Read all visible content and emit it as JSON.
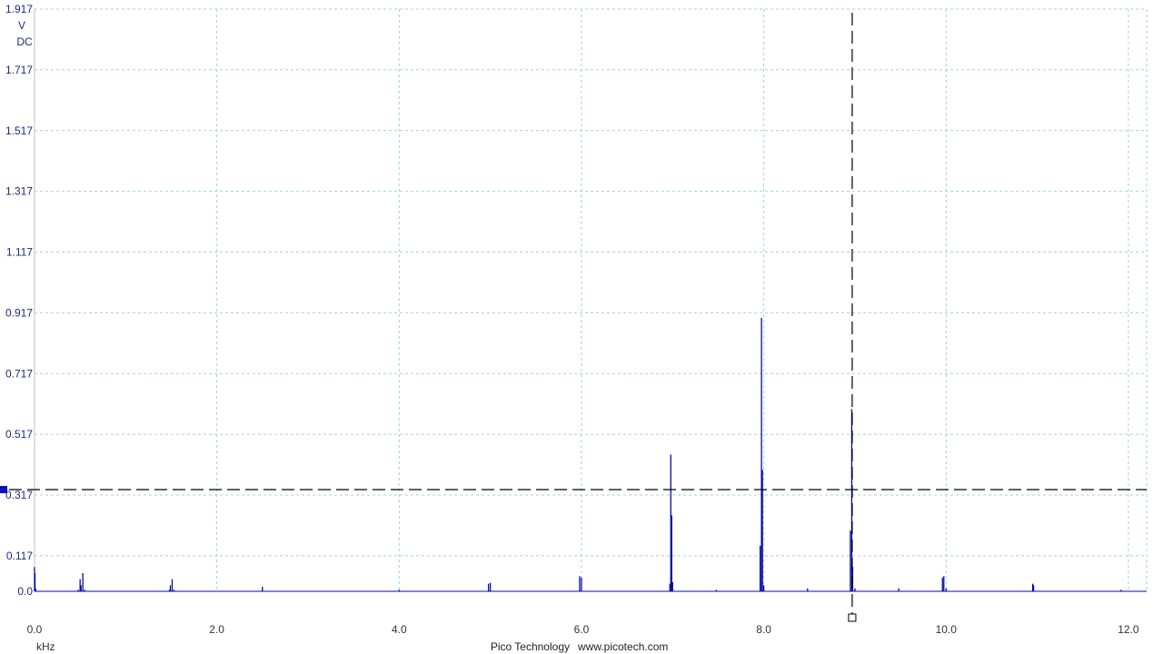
{
  "chart_data": {
    "type": "line",
    "x_unit": "kHz",
    "y_unit": "V",
    "coupling": "DC",
    "xlim": [
      0.0,
      12.2
    ],
    "ylim": [
      0.0,
      1.917
    ],
    "x_ticks": [
      "0.0",
      "2.0",
      "4.0",
      "6.0",
      "8.0",
      "10.0",
      "12.0"
    ],
    "y_ticks": [
      "1.917",
      "1.717",
      "1.517",
      "1.317",
      "1.117",
      "0.917",
      "0.717",
      "0.517",
      "0.317",
      "0.117",
      "0.0"
    ],
    "grid": true,
    "series_color": "#0a0aa0",
    "grid_color": "#9fd3e0",
    "points": [
      [
        0.0,
        0.08
      ],
      [
        0.005,
        0.06
      ],
      [
        0.012,
        0.01
      ],
      [
        0.48,
        0.005
      ],
      [
        0.5,
        0.04
      ],
      [
        0.51,
        0.02
      ],
      [
        0.53,
        0.06
      ],
      [
        0.55,
        0.005
      ],
      [
        1.48,
        0.005
      ],
      [
        1.49,
        0.02
      ],
      [
        1.51,
        0.04
      ],
      [
        1.53,
        0.005
      ],
      [
        2.5,
        0.015
      ],
      [
        4.0,
        0.005
      ],
      [
        4.98,
        0.025
      ],
      [
        5.0,
        0.028
      ],
      [
        5.98,
        0.05
      ],
      [
        6.0,
        0.045
      ],
      [
        6.97,
        0.025
      ],
      [
        6.98,
        0.45
      ],
      [
        6.99,
        0.25
      ],
      [
        7.0,
        0.03
      ],
      [
        7.48,
        0.005
      ],
      [
        7.96,
        0.15
      ],
      [
        7.975,
        0.9
      ],
      [
        7.985,
        0.4
      ],
      [
        8.0,
        0.02
      ],
      [
        8.48,
        0.01
      ],
      [
        8.95,
        0.2
      ],
      [
        8.965,
        0.6
      ],
      [
        8.975,
        0.08
      ],
      [
        9.0,
        0.01
      ],
      [
        9.48,
        0.01
      ],
      [
        9.96,
        0.045
      ],
      [
        9.975,
        0.05
      ],
      [
        10.0,
        0.01
      ],
      [
        10.95,
        0.025
      ],
      [
        10.96,
        0.02
      ],
      [
        11.92,
        0.005
      ]
    ],
    "cursor_x": 8.97,
    "cursor_y": 0.335
  },
  "footer": {
    "brand": "Pico Technology",
    "url": "www.picotech.com"
  }
}
